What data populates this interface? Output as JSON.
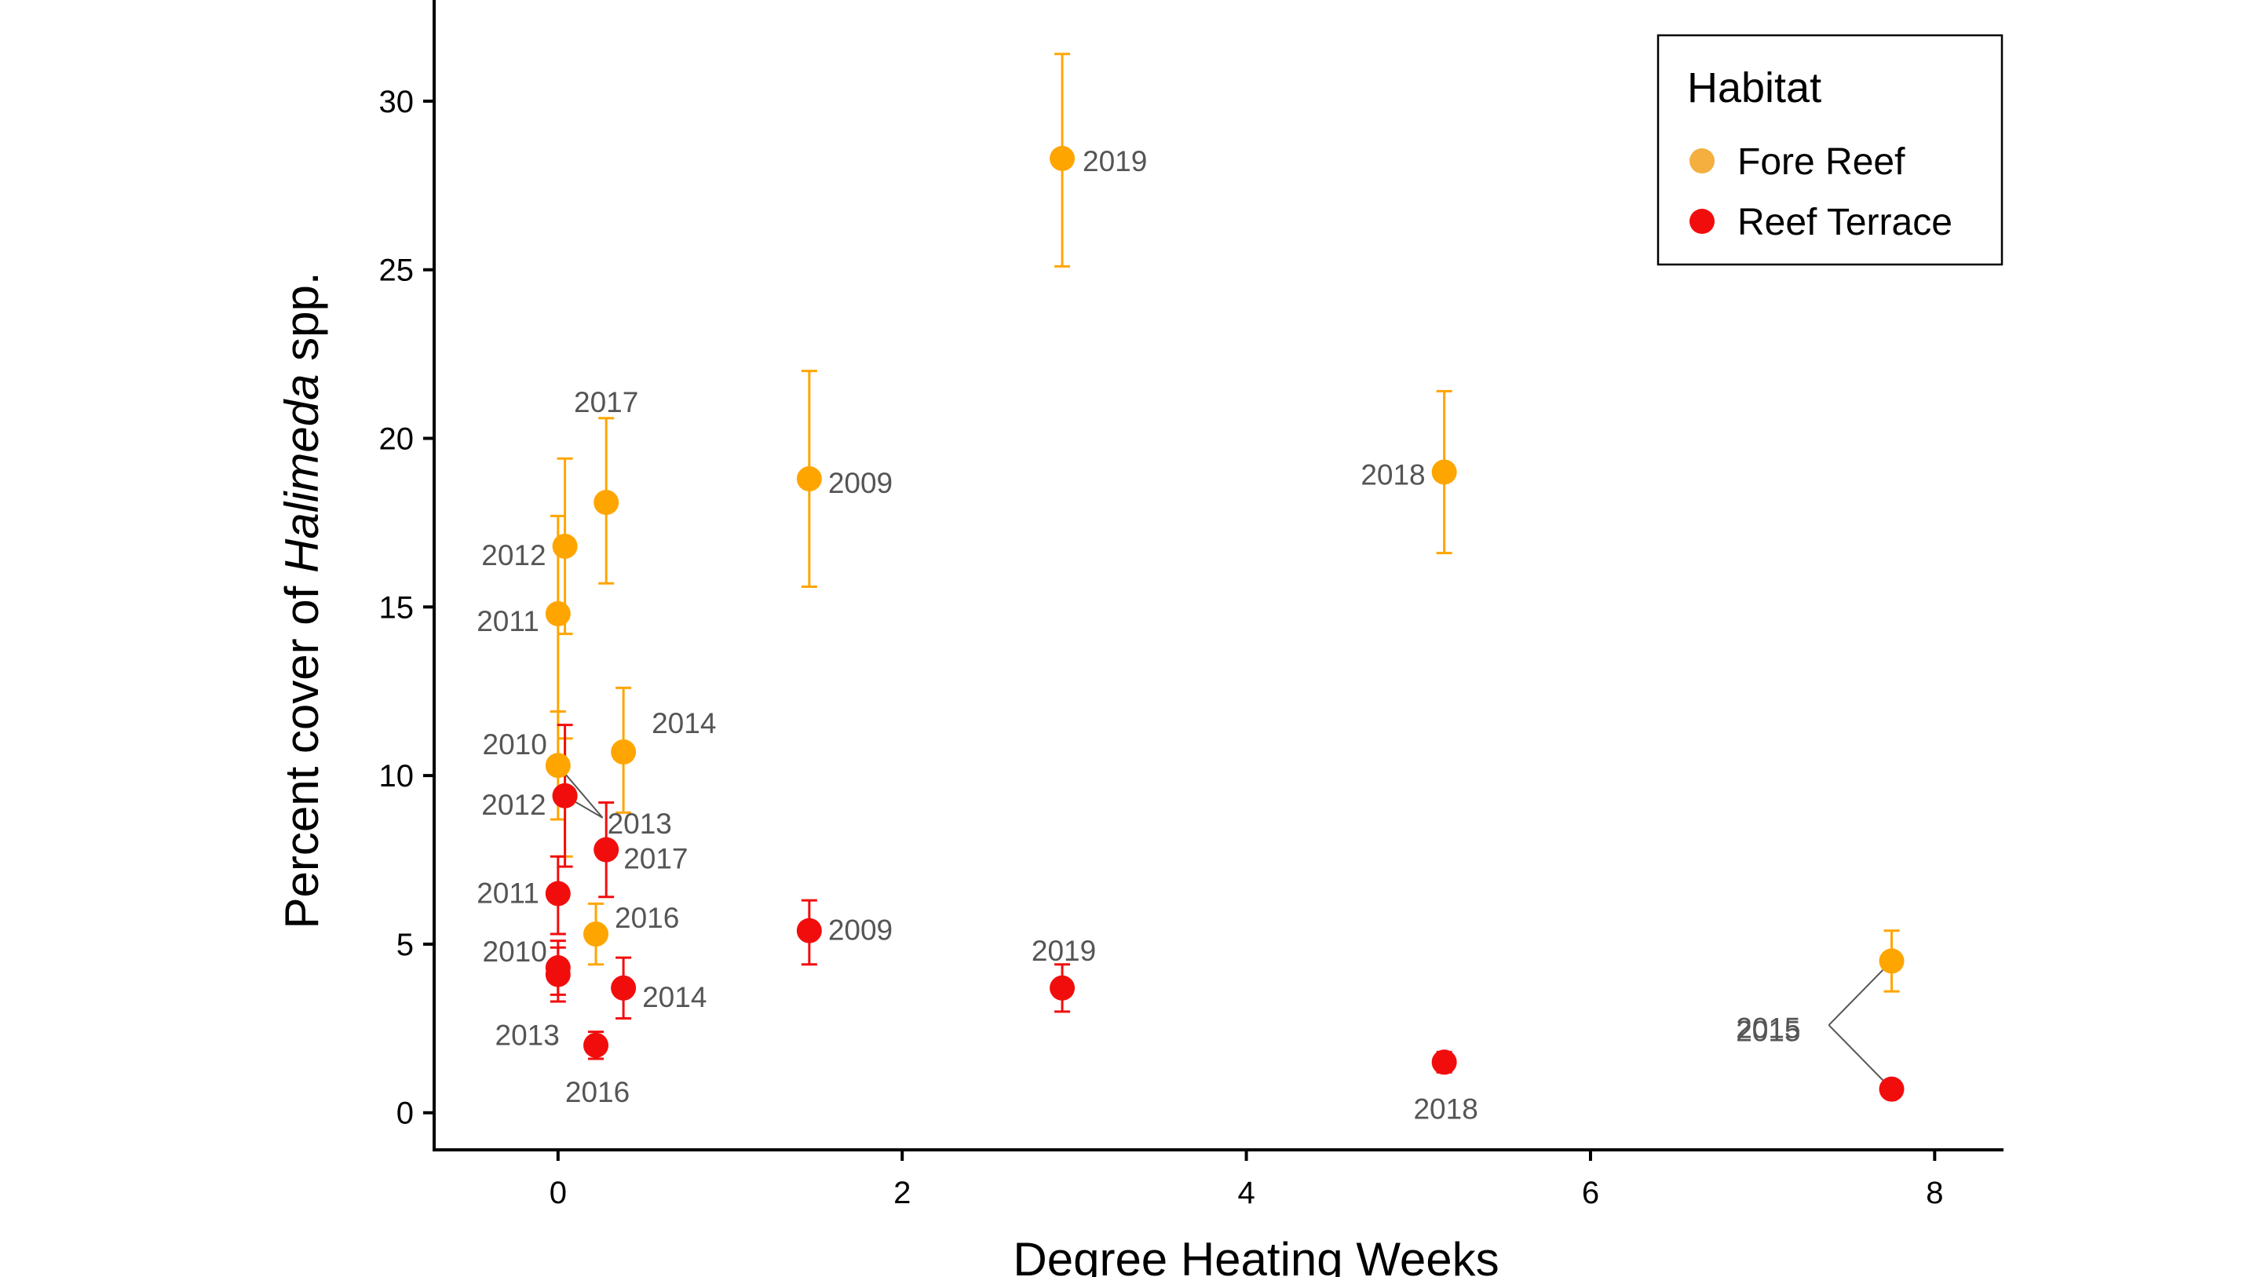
{
  "chart_data": {
    "type": "scatter",
    "xlabel": "Degree Heating Weeks",
    "ylabel_prefix": "Percent cover of ",
    "ylabel_italic": "Halimeda",
    "ylabel_suffix": " spp.",
    "xlim": [
      -0.72,
      8.4
    ],
    "ylim": [
      -1.1,
      33
    ],
    "x_ticks": [
      0,
      2,
      4,
      6,
      8
    ],
    "y_ticks": [
      0,
      5,
      10,
      15,
      20,
      25,
      30
    ],
    "grid": false,
    "legend": {
      "title": "Habitat",
      "position": "top-right",
      "entries": [
        {
          "label": "Fore Reef",
          "color": "#F4AF3F"
        },
        {
          "label": "Reef Terrace",
          "color": "#F20D0D"
        }
      ]
    },
    "series": [
      {
        "name": "Fore Reef",
        "color": "#FFA500",
        "points": [
          {
            "year": "2009",
            "x": 1.46,
            "y": 18.8,
            "ymin": 15.6,
            "ymax": 22.0
          },
          {
            "year": "2010",
            "x": 0.0,
            "y": 10.3,
            "ymin": 8.7,
            "ymax": 11.9
          },
          {
            "year": "2011",
            "x": 0.0,
            "y": 14.8,
            "ymin": 11.9,
            "ymax": 17.7
          },
          {
            "year": "2012",
            "x": 0.04,
            "y": 16.8,
            "ymin": 14.2,
            "ymax": 19.4
          },
          {
            "year": "2013",
            "x": 0.04,
            "y": 9.4,
            "ymin": 7.6,
            "ymax": 11.1
          },
          {
            "year": "2014",
            "x": 0.38,
            "y": 10.7,
            "ymin": 8.9,
            "ymax": 12.6
          },
          {
            "year": "2015",
            "x": 7.75,
            "y": 4.5,
            "ymin": 3.6,
            "ymax": 5.4
          },
          {
            "year": "2016",
            "x": 0.22,
            "y": 5.3,
            "ymin": 4.4,
            "ymax": 6.2
          },
          {
            "year": "2017",
            "x": 0.28,
            "y": 18.1,
            "ymin": 15.7,
            "ymax": 20.6
          },
          {
            "year": "2018",
            "x": 5.15,
            "y": 19.0,
            "ymin": 16.6,
            "ymax": 21.4
          },
          {
            "year": "2019",
            "x": 2.93,
            "y": 28.3,
            "ymin": 25.1,
            "ymax": 31.4
          }
        ]
      },
      {
        "name": "Reef Terrace",
        "color": "#F20D0D",
        "points": [
          {
            "year": "2009",
            "x": 1.46,
            "y": 5.4,
            "ymin": 4.4,
            "ymax": 6.3
          },
          {
            "year": "2010",
            "x": 0.0,
            "y": 4.3,
            "ymin": 3.5,
            "ymax": 5.1
          },
          {
            "year": "2011",
            "x": 0.0,
            "y": 6.5,
            "ymin": 5.3,
            "ymax": 7.6
          },
          {
            "year": "2012",
            "x": 0.04,
            "y": 9.4,
            "ymin": 7.3,
            "ymax": 11.5
          },
          {
            "year": "2013",
            "x": 0.0,
            "y": 4.1,
            "ymin": 3.3,
            "ymax": 4.9
          },
          {
            "year": "2014",
            "x": 0.38,
            "y": 3.7,
            "ymin": 2.8,
            "ymax": 4.6
          },
          {
            "year": "2015",
            "x": 7.75,
            "y": 0.7,
            "ymin": 0.5,
            "ymax": 0.9
          },
          {
            "year": "2016",
            "x": 0.22,
            "y": 2.0,
            "ymin": 1.6,
            "ymax": 2.4
          },
          {
            "year": "2017",
            "x": 0.28,
            "y": 7.8,
            "ymin": 6.4,
            "ymax": 9.2
          },
          {
            "year": "2018",
            "x": 5.15,
            "y": 1.5,
            "ymin": 1.2,
            "ymax": 1.8
          },
          {
            "year": "2019",
            "x": 2.93,
            "y": 3.7,
            "ymin": 3.0,
            "ymax": 4.4
          }
        ]
      }
    ]
  }
}
